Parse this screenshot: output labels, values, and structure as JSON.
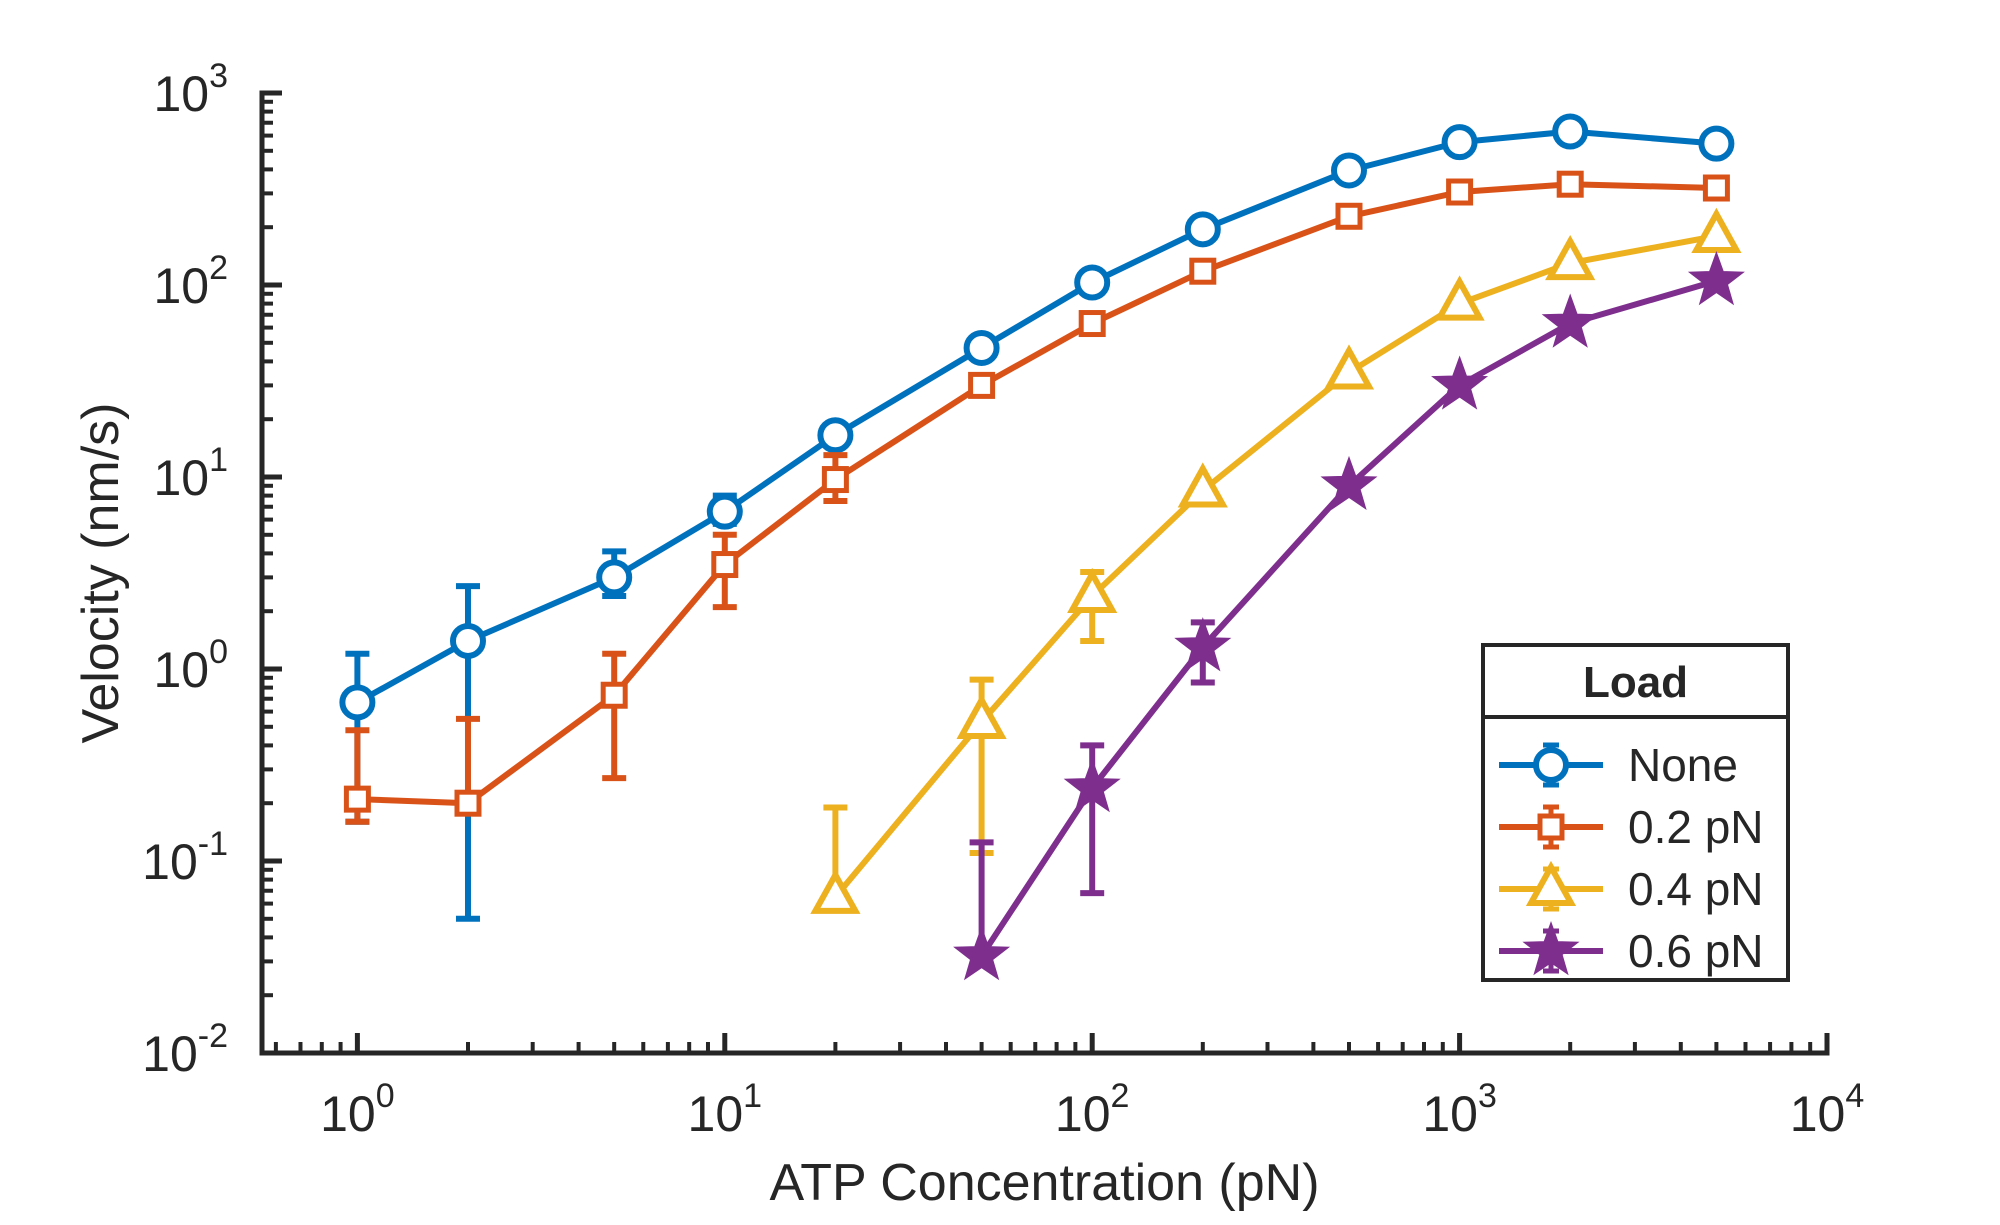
{
  "chart_data": {
    "type": "line",
    "xlabel": "ATP Concentration (pN)",
    "ylabel": "Velocity (nm/s)",
    "xscale": "log",
    "yscale": "log",
    "xlim": [
      0.55,
      10000
    ],
    "ylim": [
      0.01,
      1000
    ],
    "grid": false,
    "xticks": [
      {
        "base": "10",
        "exp": "0",
        "value": 1
      },
      {
        "base": "10",
        "exp": "1",
        "value": 10
      },
      {
        "base": "10",
        "exp": "2",
        "value": 100
      },
      {
        "base": "10",
        "exp": "3",
        "value": 1000
      },
      {
        "base": "10",
        "exp": "4",
        "value": 10000
      }
    ],
    "yticks": [
      {
        "base": "10",
        "exp": "-2",
        "value": 0.01
      },
      {
        "base": "10",
        "exp": "-1",
        "value": 0.1
      },
      {
        "base": "10",
        "exp": "0",
        "value": 1
      },
      {
        "base": "10",
        "exp": "1",
        "value": 10
      },
      {
        "base": "10",
        "exp": "2",
        "value": 100
      },
      {
        "base": "10",
        "exp": "3",
        "value": 1000
      }
    ],
    "legend": {
      "title": "Load",
      "location": "bottom-right"
    },
    "series": [
      {
        "name": "None",
        "color": "#0072BD",
        "marker": "circle",
        "x": [
          1,
          2,
          5,
          10,
          20,
          50,
          100,
          200,
          500,
          1000,
          2000,
          5000
        ],
        "y": [
          0.67,
          1.4,
          3.0,
          6.6,
          16.5,
          47,
          103,
          195,
          395,
          555,
          630,
          545
        ],
        "lower": [
          0.16,
          0.05,
          2.4,
          5.7,
          null,
          null,
          null,
          null,
          null,
          null,
          null,
          null
        ],
        "upper": [
          1.2,
          2.7,
          4.1,
          8.0,
          null,
          null,
          null,
          null,
          null,
          null,
          null,
          null
        ]
      },
      {
        "name": "0.2 pN",
        "color": "#D95319",
        "marker": "square",
        "x": [
          1,
          2,
          5,
          10,
          20,
          50,
          100,
          200,
          500,
          1000,
          2000,
          5000
        ],
        "y": [
          0.21,
          0.2,
          0.73,
          3.5,
          9.7,
          30,
          63,
          118,
          228,
          305,
          335,
          320
        ],
        "lower": [
          0.16,
          null,
          0.27,
          2.1,
          7.5,
          null,
          null,
          null,
          null,
          null,
          null,
          null
        ],
        "upper": [
          0.48,
          0.55,
          1.2,
          5.0,
          13.0,
          null,
          null,
          null,
          null,
          null,
          null,
          null
        ]
      },
      {
        "name": "0.4 pN",
        "color": "#EDB120",
        "marker": "triangle",
        "x": [
          20,
          50,
          100,
          200,
          500,
          1000,
          2000,
          5000
        ],
        "y": [
          0.065,
          0.53,
          2.4,
          8.5,
          35,
          80,
          130,
          180
        ],
        "lower": [
          null,
          0.11,
          1.4,
          null,
          null,
          null,
          null,
          null
        ],
        "upper": [
          0.19,
          0.88,
          3.2,
          null,
          null,
          null,
          null,
          null
        ]
      },
      {
        "name": "0.6 pN",
        "color": "#7E2F8E",
        "marker": "star",
        "x": [
          50,
          100,
          200,
          500,
          1000,
          2000,
          5000
        ],
        "y": [
          0.032,
          0.24,
          1.3,
          9.0,
          30,
          63,
          105
        ],
        "lower": [
          null,
          0.068,
          0.85,
          null,
          null,
          null,
          null
        ],
        "upper": [
          0.125,
          0.4,
          1.75,
          null,
          null,
          null,
          null
        ]
      }
    ]
  }
}
